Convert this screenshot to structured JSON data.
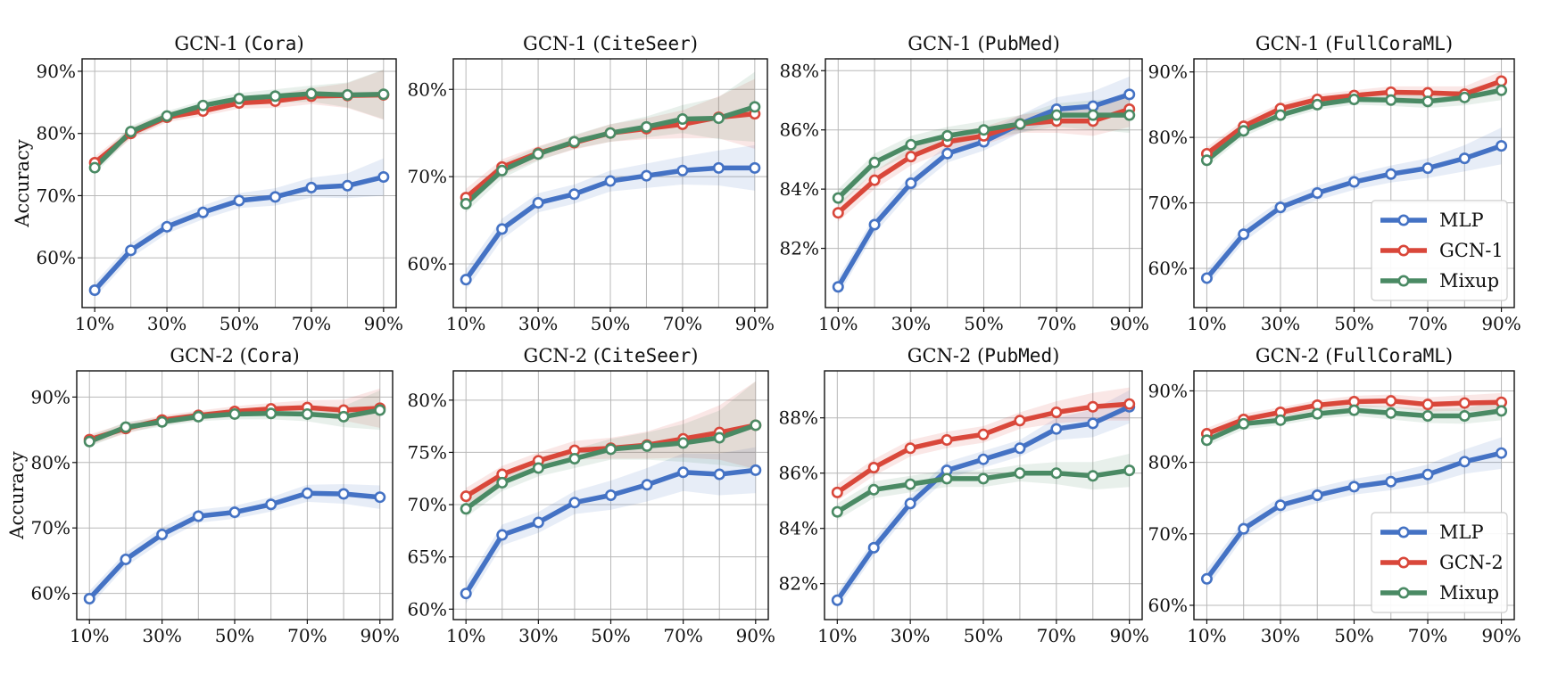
{
  "chart_data": [
    {
      "type": "line",
      "title_prefix": "GCN-1 ",
      "title_dataset": "Cora",
      "ylabel": "Accuracy",
      "x": [
        10,
        20,
        30,
        40,
        50,
        60,
        70,
        80,
        90
      ],
      "xticks": [
        10,
        30,
        50,
        70,
        90
      ],
      "xtick_labels": [
        "10%",
        "30%",
        "50%",
        "70%",
        "90%"
      ],
      "ylim": [
        52,
        92
      ],
      "yticks": [
        60,
        70,
        80,
        90
      ],
      "ytick_labels": [
        "60%",
        "70%",
        "80%",
        "90%"
      ],
      "grid": true,
      "series": [
        {
          "key": "mlp",
          "values": [
            54.8,
            61.2,
            65.0,
            67.3,
            69.2,
            69.8,
            71.3,
            71.6,
            73.0
          ],
          "band": [
            1.2,
            1.2,
            1.1,
            1.1,
            1.2,
            1.4,
            1.6,
            2.0,
            3.0
          ]
        },
        {
          "key": "gcn",
          "values": [
            75.3,
            80.0,
            82.6,
            83.6,
            84.9,
            85.2,
            86.0,
            86.1,
            86.2
          ],
          "band": [
            1.0,
            0.9,
            0.8,
            0.8,
            0.9,
            1.1,
            1.3,
            2.0,
            4.0
          ]
        },
        {
          "key": "mixup",
          "values": [
            74.5,
            80.3,
            82.8,
            84.5,
            85.6,
            86.0,
            86.4,
            86.2,
            86.3
          ],
          "band": [
            1.0,
            0.9,
            0.8,
            0.8,
            0.9,
            1.1,
            1.3,
            2.0,
            4.0
          ]
        }
      ]
    },
    {
      "type": "line",
      "title_prefix": "GCN-1 ",
      "title_dataset": "CiteSeer",
      "ylabel": "",
      "x": [
        10,
        20,
        30,
        40,
        50,
        60,
        70,
        80,
        90
      ],
      "xticks": [
        10,
        30,
        50,
        70,
        90
      ],
      "xtick_labels": [
        "10%",
        "30%",
        "50%",
        "70%",
        "90%"
      ],
      "ylim": [
        55,
        83.5
      ],
      "yticks": [
        60,
        70,
        80
      ],
      "ytick_labels": [
        "60%",
        "70%",
        "80%"
      ],
      "grid": true,
      "series": [
        {
          "key": "mlp",
          "values": [
            58.2,
            64.0,
            67.0,
            68.0,
            69.5,
            70.1,
            70.7,
            71.0,
            71.0
          ],
          "band": [
            1.2,
            1.2,
            1.1,
            1.1,
            1.2,
            1.4,
            1.6,
            2.0,
            2.6
          ]
        },
        {
          "key": "gcn",
          "values": [
            67.6,
            71.1,
            72.7,
            73.9,
            75.0,
            75.5,
            76.0,
            76.8,
            77.2
          ],
          "band": [
            1.0,
            0.9,
            0.8,
            0.8,
            1.0,
            1.2,
            1.6,
            2.4,
            4.0
          ]
        },
        {
          "key": "mixup",
          "values": [
            66.9,
            70.7,
            72.6,
            74.0,
            75.0,
            75.7,
            76.6,
            76.7,
            78.0
          ],
          "band": [
            1.0,
            0.9,
            0.8,
            0.8,
            1.0,
            1.2,
            1.6,
            2.4,
            4.0
          ]
        }
      ]
    },
    {
      "type": "line",
      "title_prefix": "GCN-1 ",
      "title_dataset": "PubMed",
      "ylabel": "",
      "x": [
        10,
        20,
        30,
        40,
        50,
        60,
        70,
        80,
        90
      ],
      "xticks": [
        10,
        30,
        50,
        70,
        90
      ],
      "xtick_labels": [
        "10%",
        "30%",
        "50%",
        "70%",
        "90%"
      ],
      "ylim": [
        80.0,
        88.4
      ],
      "yticks": [
        82,
        84,
        86,
        88
      ],
      "ytick_labels": [
        "82%",
        "84%",
        "86%",
        "88%"
      ],
      "grid": true,
      "series": [
        {
          "key": "mlp",
          "values": [
            80.7,
            82.8,
            84.2,
            85.2,
            85.6,
            86.2,
            86.7,
            86.8,
            87.2
          ],
          "band": [
            0.3,
            0.3,
            0.3,
            0.3,
            0.3,
            0.3,
            0.4,
            0.5,
            0.6
          ]
        },
        {
          "key": "gcn",
          "values": [
            83.2,
            84.3,
            85.1,
            85.6,
            85.8,
            86.2,
            86.3,
            86.3,
            86.7
          ],
          "band": [
            0.3,
            0.3,
            0.3,
            0.3,
            0.3,
            0.3,
            0.4,
            0.5,
            0.6
          ]
        },
        {
          "key": "mixup",
          "values": [
            83.7,
            84.9,
            85.5,
            85.8,
            86.0,
            86.2,
            86.5,
            86.5,
            86.5
          ],
          "band": [
            0.3,
            0.3,
            0.3,
            0.3,
            0.3,
            0.3,
            0.4,
            0.5,
            0.6
          ]
        }
      ]
    },
    {
      "type": "line",
      "title_prefix": "GCN-1 ",
      "title_dataset": "FullCoraML",
      "ylabel": "",
      "x": [
        10,
        20,
        30,
        40,
        50,
        60,
        70,
        80,
        90
      ],
      "xticks": [
        10,
        30,
        50,
        70,
        90
      ],
      "xtick_labels": [
        "10%",
        "30%",
        "50%",
        "70%",
        "90%"
      ],
      "ylim": [
        54,
        92
      ],
      "yticks": [
        60,
        70,
        80,
        90
      ],
      "ytick_labels": [
        "60%",
        "70%",
        "80%",
        "90%"
      ],
      "grid": true,
      "legend": {
        "position": "lower-right",
        "entries": [
          "MLP",
          "GCN-1",
          "Mixup"
        ]
      },
      "series": [
        {
          "key": "mlp",
          "values": [
            58.5,
            65.2,
            69.3,
            71.5,
            73.2,
            74.4,
            75.3,
            76.8,
            78.7
          ],
          "band": [
            1.2,
            1.2,
            1.1,
            1.1,
            1.2,
            1.3,
            1.5,
            2.0,
            2.8
          ]
        },
        {
          "key": "gcn",
          "values": [
            77.5,
            81.7,
            84.4,
            85.8,
            86.4,
            86.9,
            86.8,
            86.6,
            88.6
          ],
          "band": [
            1.0,
            0.9,
            0.8,
            0.8,
            0.8,
            0.9,
            1.0,
            1.2,
            1.5
          ]
        },
        {
          "key": "mixup",
          "values": [
            76.5,
            81.0,
            83.4,
            85.0,
            85.8,
            85.7,
            85.5,
            86.1,
            87.2
          ],
          "band": [
            1.0,
            0.9,
            0.8,
            0.8,
            0.8,
            0.9,
            1.0,
            1.2,
            1.5
          ]
        }
      ]
    },
    {
      "type": "line",
      "title_prefix": "GCN-2 ",
      "title_dataset": "Cora",
      "ylabel": "Accuracy",
      "x": [
        10,
        20,
        30,
        40,
        50,
        60,
        70,
        80,
        90
      ],
      "xticks": [
        10,
        30,
        50,
        70,
        90
      ],
      "xtick_labels": [
        "10%",
        "30%",
        "50%",
        "70%",
        "90%"
      ],
      "ylim": [
        56,
        94
      ],
      "yticks": [
        60,
        70,
        80,
        90
      ],
      "ytick_labels": [
        "60%",
        "70%",
        "80%",
        "90%"
      ],
      "grid": true,
      "series": [
        {
          "key": "mlp",
          "values": [
            59.2,
            65.2,
            69.0,
            71.8,
            72.4,
            73.6,
            75.3,
            75.2,
            74.7
          ],
          "band": [
            1.2,
            1.1,
            1.1,
            1.0,
            1.0,
            1.1,
            1.3,
            1.5,
            1.8
          ]
        },
        {
          "key": "gcn",
          "values": [
            83.5,
            85.2,
            86.5,
            87.2,
            87.8,
            88.2,
            88.4,
            88.0,
            88.3
          ],
          "band": [
            0.8,
            0.8,
            0.7,
            0.7,
            0.8,
            0.9,
            1.1,
            1.6,
            3.0
          ]
        },
        {
          "key": "mixup",
          "values": [
            83.2,
            85.4,
            86.2,
            87.0,
            87.4,
            87.5,
            87.4,
            87.0,
            88.0
          ],
          "band": [
            0.8,
            0.8,
            0.7,
            0.7,
            0.8,
            0.9,
            1.1,
            1.6,
            3.0
          ]
        }
      ]
    },
    {
      "type": "line",
      "title_prefix": "GCN-2 ",
      "title_dataset": "CiteSeer",
      "ylabel": "",
      "x": [
        10,
        20,
        30,
        40,
        50,
        60,
        70,
        80,
        90
      ],
      "xticks": [
        10,
        30,
        50,
        70,
        90
      ],
      "xtick_labels": [
        "10%",
        "30%",
        "50%",
        "70%",
        "90%"
      ],
      "ylim": [
        59,
        82.8
      ],
      "yticks": [
        60,
        65,
        70,
        75,
        80
      ],
      "ytick_labels": [
        "60%",
        "65%",
        "70%",
        "75%",
        "80%"
      ],
      "grid": true,
      "series": [
        {
          "key": "mlp",
          "values": [
            61.5,
            67.1,
            68.3,
            70.2,
            70.9,
            71.9,
            73.1,
            72.9,
            73.3
          ],
          "band": [
            1.0,
            1.0,
            1.0,
            1.1,
            1.4,
            1.6,
            1.8,
            2.0,
            2.2
          ]
        },
        {
          "key": "gcn",
          "values": [
            70.8,
            72.9,
            74.2,
            75.2,
            75.4,
            75.7,
            76.3,
            76.9,
            77.6
          ],
          "band": [
            0.8,
            0.8,
            0.8,
            0.9,
            1.0,
            1.3,
            1.8,
            2.6,
            4.2
          ]
        },
        {
          "key": "mixup",
          "values": [
            69.6,
            72.1,
            73.5,
            74.4,
            75.3,
            75.6,
            75.9,
            76.4,
            77.6
          ],
          "band": [
            0.8,
            0.8,
            0.8,
            0.9,
            1.0,
            1.3,
            1.8,
            2.6,
            4.2
          ]
        }
      ]
    },
    {
      "type": "line",
      "title_prefix": "GCN-2 ",
      "title_dataset": "PubMed",
      "ylabel": "",
      "x": [
        10,
        20,
        30,
        40,
        50,
        60,
        70,
        80,
        90
      ],
      "xticks": [
        10,
        30,
        50,
        70,
        90
      ],
      "xtick_labels": [
        "10%",
        "30%",
        "50%",
        "70%",
        "90%"
      ],
      "ylim": [
        80.7,
        89.7
      ],
      "yticks": [
        82,
        84,
        86,
        88
      ],
      "ytick_labels": [
        "82%",
        "84%",
        "86%",
        "88%"
      ],
      "grid": true,
      "series": [
        {
          "key": "mlp",
          "values": [
            81.4,
            83.3,
            84.9,
            86.1,
            86.5,
            86.9,
            87.6,
            87.8,
            88.4
          ],
          "band": [
            0.3,
            0.3,
            0.3,
            0.3,
            0.3,
            0.3,
            0.4,
            0.5,
            0.6
          ]
        },
        {
          "key": "gcn",
          "values": [
            85.3,
            86.2,
            86.9,
            87.2,
            87.4,
            87.9,
            88.2,
            88.4,
            88.5
          ],
          "band": [
            0.3,
            0.3,
            0.3,
            0.3,
            0.3,
            0.3,
            0.4,
            0.5,
            0.6
          ]
        },
        {
          "key": "mixup",
          "values": [
            84.6,
            85.4,
            85.6,
            85.8,
            85.8,
            86.0,
            86.0,
            85.9,
            86.1
          ],
          "band": [
            0.3,
            0.3,
            0.3,
            0.3,
            0.3,
            0.3,
            0.4,
            0.5,
            0.6
          ]
        }
      ]
    },
    {
      "type": "line",
      "title_prefix": "GCN-2 ",
      "title_dataset": "FullCoraML",
      "ylabel": "",
      "x": [
        10,
        20,
        30,
        40,
        50,
        60,
        70,
        80,
        90
      ],
      "xticks": [
        10,
        30,
        50,
        70,
        90
      ],
      "xtick_labels": [
        "10%",
        "30%",
        "50%",
        "70%",
        "90%"
      ],
      "ylim": [
        58,
        92.8
      ],
      "yticks": [
        60,
        70,
        80,
        90
      ],
      "ytick_labels": [
        "60%",
        "70%",
        "80%",
        "90%"
      ],
      "grid": true,
      "legend": {
        "position": "lower-right",
        "entries": [
          "MLP",
          "GCN-2",
          "Mixup"
        ]
      },
      "series": [
        {
          "key": "mlp",
          "values": [
            63.7,
            70.7,
            74.0,
            75.4,
            76.6,
            77.3,
            78.3,
            80.1,
            81.3
          ],
          "band": [
            1.3,
            1.2,
            1.1,
            1.1,
            1.1,
            1.2,
            1.4,
            1.7,
            2.2
          ]
        },
        {
          "key": "gcn",
          "values": [
            84.0,
            86.0,
            87.0,
            88.0,
            88.5,
            88.6,
            88.1,
            88.3,
            88.4
          ],
          "band": [
            0.8,
            0.8,
            0.7,
            0.7,
            0.8,
            0.9,
            1.0,
            1.1,
            1.3
          ]
        },
        {
          "key": "mixup",
          "values": [
            83.1,
            85.4,
            85.9,
            86.8,
            87.3,
            86.9,
            86.5,
            86.5,
            87.2
          ],
          "band": [
            0.8,
            0.8,
            0.7,
            0.7,
            0.8,
            0.9,
            1.0,
            1.1,
            1.3
          ]
        }
      ]
    }
  ],
  "colors": {
    "mlp": "#4472c4",
    "gcn": "#d9473a",
    "mixup": "#4a8a64",
    "grid": "#b8b8b8",
    "marker_fill": "#ffffff"
  }
}
